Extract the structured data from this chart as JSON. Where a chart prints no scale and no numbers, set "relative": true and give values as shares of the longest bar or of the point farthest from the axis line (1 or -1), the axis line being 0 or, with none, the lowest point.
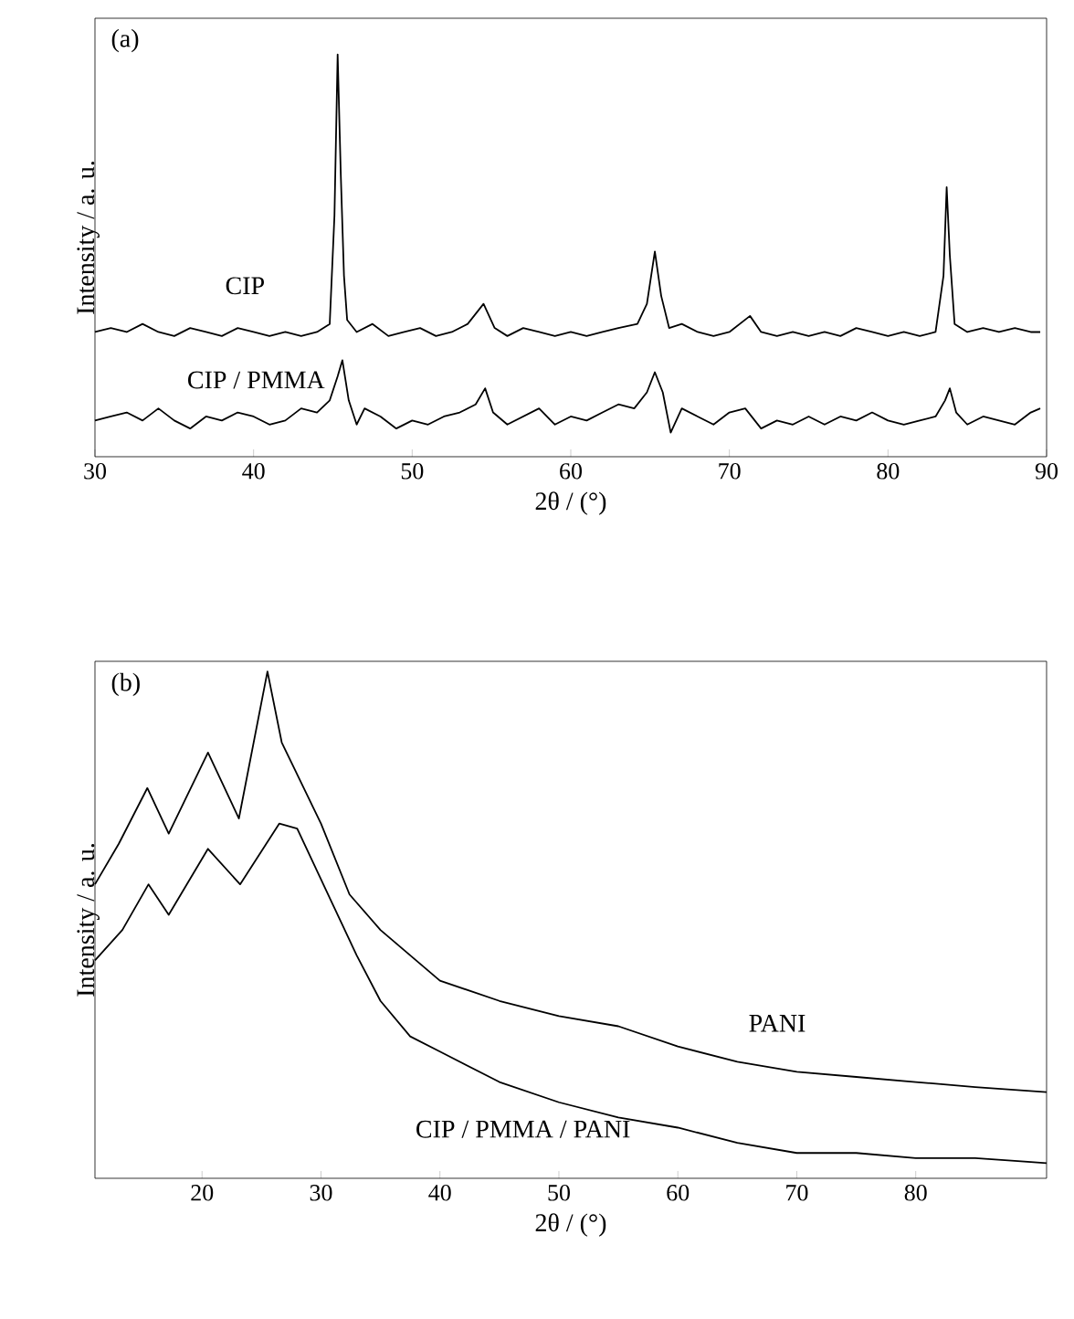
{
  "chart_data": [
    {
      "type": "line",
      "title": "(a)",
      "xlabel": "2θ / (°)",
      "ylabel": "Intensity / a. u.",
      "relative": true,
      "xlim": [
        30,
        90
      ],
      "xticks": [
        30,
        40,
        50,
        60,
        70,
        80,
        90
      ],
      "tick_labels": "x",
      "legend": false,
      "grid": false,
      "marker": "none",
      "line_style": "solid",
      "series": [
        {
          "name": "CIP",
          "color": "#000000",
          "x": [
            30,
            31,
            32,
            33,
            34,
            35,
            36,
            37,
            38,
            39,
            40,
            41,
            42,
            43,
            44,
            44.8,
            45.1,
            45.3,
            45.5,
            45.7,
            45.9,
            46.5,
            47.5,
            48.5,
            49.5,
            50.5,
            51.5,
            52.5,
            53.5,
            54.5,
            55.2,
            56,
            57,
            58,
            59,
            60,
            61,
            62,
            63,
            64.2,
            64.8,
            65.3,
            65.7,
            66.2,
            67,
            68,
            69,
            70,
            71.3,
            72,
            73,
            74,
            75,
            76,
            77,
            78,
            79,
            80,
            81,
            82,
            83,
            83.5,
            83.7,
            83.9,
            84.2,
            85,
            86,
            87,
            88,
            89,
            89.6
          ],
          "values": [
            0.31,
            0.32,
            0.31,
            0.33,
            0.31,
            0.3,
            0.32,
            0.31,
            0.3,
            0.32,
            0.31,
            0.3,
            0.31,
            0.3,
            0.31,
            0.33,
            0.6,
            1.0,
            0.7,
            0.45,
            0.34,
            0.31,
            0.33,
            0.3,
            0.31,
            0.32,
            0.3,
            0.31,
            0.33,
            0.38,
            0.32,
            0.3,
            0.32,
            0.31,
            0.3,
            0.31,
            0.3,
            0.31,
            0.32,
            0.33,
            0.38,
            0.51,
            0.4,
            0.32,
            0.33,
            0.31,
            0.3,
            0.31,
            0.35,
            0.31,
            0.3,
            0.31,
            0.3,
            0.31,
            0.3,
            0.32,
            0.31,
            0.3,
            0.31,
            0.3,
            0.31,
            0.45,
            0.67,
            0.5,
            0.33,
            0.31,
            0.32,
            0.31,
            0.32,
            0.31,
            0.31
          ]
        },
        {
          "name": "CIP / PMMA",
          "color": "#000000",
          "x": [
            30,
            31,
            32,
            33,
            34,
            35,
            36,
            37,
            38,
            39,
            40,
            41,
            42,
            43,
            44,
            44.8,
            45.3,
            45.6,
            46,
            46.5,
            47,
            48,
            49,
            50,
            51,
            52,
            53,
            54,
            54.6,
            55.1,
            56,
            57,
            58,
            59,
            60,
            61,
            62,
            63,
            64,
            64.8,
            65.3,
            65.8,
            66.3,
            67,
            68,
            69,
            70,
            71,
            72,
            73,
            74,
            75,
            76,
            77,
            78,
            79,
            80,
            81,
            82,
            83,
            83.6,
            83.9,
            84.3,
            85,
            86,
            87,
            88,
            89,
            89.6
          ],
          "values": [
            0.09,
            0.1,
            0.11,
            0.09,
            0.12,
            0.09,
            0.07,
            0.1,
            0.09,
            0.11,
            0.1,
            0.08,
            0.09,
            0.12,
            0.11,
            0.14,
            0.2,
            0.24,
            0.14,
            0.08,
            0.12,
            0.1,
            0.07,
            0.09,
            0.08,
            0.1,
            0.11,
            0.13,
            0.17,
            0.11,
            0.08,
            0.1,
            0.12,
            0.08,
            0.1,
            0.09,
            0.11,
            0.13,
            0.12,
            0.16,
            0.21,
            0.16,
            0.06,
            0.12,
            0.1,
            0.08,
            0.11,
            0.12,
            0.07,
            0.09,
            0.08,
            0.1,
            0.08,
            0.1,
            0.09,
            0.11,
            0.09,
            0.08,
            0.09,
            0.1,
            0.14,
            0.17,
            0.11,
            0.08,
            0.1,
            0.09,
            0.08,
            0.11,
            0.12
          ]
        }
      ]
    },
    {
      "type": "line",
      "title": "(b)",
      "xlabel": "2θ / (°)",
      "ylabel": "Intensity / a. u.",
      "relative": true,
      "xlim": [
        11,
        91
      ],
      "xticks": [
        20,
        30,
        40,
        50,
        60,
        70,
        80
      ],
      "tick_labels": "x",
      "legend": false,
      "grid": false,
      "marker": "none",
      "line_style": "solid",
      "series": [
        {
          "name": "PANI",
          "color": "#000000",
          "x": [
            11,
            13,
            15.4,
            17.2,
            20.5,
            23.1,
            25.5,
            26.7,
            30,
            32.4,
            35,
            40,
            45,
            50,
            55,
            60,
            65,
            70,
            75,
            80,
            85,
            91
          ],
          "values": [
            0.58,
            0.66,
            0.77,
            0.68,
            0.84,
            0.71,
            1.0,
            0.86,
            0.7,
            0.56,
            0.49,
            0.39,
            0.35,
            0.32,
            0.3,
            0.26,
            0.23,
            0.21,
            0.2,
            0.19,
            0.18,
            0.17
          ]
        },
        {
          "name": "CIP / PMMA / PANI",
          "color": "#000000",
          "x": [
            11,
            13.3,
            15.5,
            17.2,
            20.5,
            23.2,
            26.5,
            28,
            30.8,
            33,
            35,
            37.5,
            40,
            45,
            50,
            55,
            60,
            65,
            70,
            75,
            80,
            85,
            91
          ],
          "values": [
            0.43,
            0.49,
            0.58,
            0.52,
            0.65,
            0.58,
            0.7,
            0.69,
            0.55,
            0.44,
            0.35,
            0.28,
            0.25,
            0.19,
            0.15,
            0.12,
            0.1,
            0.07,
            0.05,
            0.05,
            0.04,
            0.04,
            0.03
          ]
        }
      ]
    }
  ]
}
